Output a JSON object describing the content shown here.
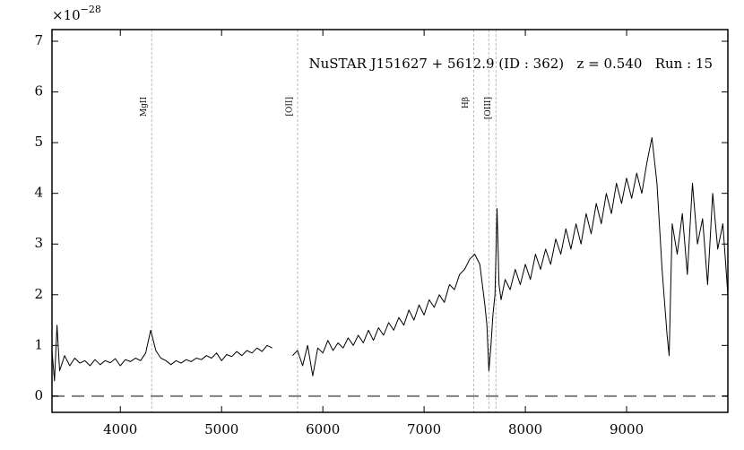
{
  "chart_data": {
    "type": "line",
    "title": "NuSTAR J151627 + 5612.9 (ID : 362)   z = 0.540   Run : 15",
    "offset_base": "×10",
    "offset_exponent": "−28",
    "x": [
      3325,
      3350,
      3375,
      3400,
      3450,
      3500,
      3550,
      3600,
      3650,
      3700,
      3750,
      3800,
      3850,
      3900,
      3950,
      4000,
      4050,
      4100,
      4150,
      4200,
      4250,
      4300,
      4325,
      4350,
      4400,
      4450,
      4500,
      4550,
      4600,
      4650,
      4700,
      4750,
      4800,
      4850,
      4900,
      4950,
      5000,
      5050,
      5100,
      5150,
      5200,
      5250,
      5300,
      5350,
      5400,
      5450,
      5500,
      5600,
      5700,
      5750,
      5800,
      5850,
      5900,
      5950,
      6000,
      6050,
      6100,
      6150,
      6200,
      6250,
      6300,
      6350,
      6400,
      6450,
      6500,
      6550,
      6600,
      6650,
      6700,
      6750,
      6800,
      6850,
      6900,
      6950,
      7000,
      7050,
      7100,
      7150,
      7200,
      7250,
      7300,
      7350,
      7400,
      7450,
      7500,
      7550,
      7600,
      7620,
      7640,
      7660,
      7680,
      7700,
      7720,
      7740,
      7760,
      7800,
      7850,
      7900,
      7950,
      8000,
      8050,
      8100,
      8150,
      8200,
      8250,
      8300,
      8350,
      8400,
      8450,
      8500,
      8550,
      8600,
      8650,
      8700,
      8750,
      8800,
      8850,
      8900,
      8950,
      9000,
      9050,
      9100,
      9150,
      9200,
      9250,
      9300,
      9350,
      9400,
      9420,
      9450,
      9500,
      9550,
      9600,
      9650,
      9700,
      9750,
      9800,
      9850,
      9900,
      9950,
      10000
    ],
    "series": [
      {
        "color": "#000000",
        "values": [
          0.9,
          0.3,
          1.4,
          0.5,
          0.8,
          0.6,
          0.75,
          0.65,
          0.7,
          0.6,
          0.72,
          0.62,
          0.7,
          0.66,
          0.74,
          0.6,
          0.72,
          0.68,
          0.75,
          0.7,
          0.85,
          1.3,
          1.1,
          0.9,
          0.75,
          0.7,
          0.62,
          0.7,
          0.65,
          0.72,
          0.68,
          0.75,
          0.72,
          0.8,
          0.75,
          0.85,
          0.7,
          0.82,
          0.78,
          0.88,
          0.8,
          0.9,
          0.85,
          0.95,
          0.88,
          1.0,
          0.95,
          null,
          0.8,
          0.9,
          0.6,
          1.0,
          0.4,
          0.95,
          0.85,
          1.1,
          0.9,
          1.05,
          0.95,
          1.15,
          1.0,
          1.2,
          1.05,
          1.3,
          1.1,
          1.35,
          1.2,
          1.45,
          1.3,
          1.55,
          1.4,
          1.7,
          1.5,
          1.8,
          1.6,
          1.9,
          1.75,
          2.0,
          1.85,
          2.2,
          2.1,
          2.4,
          2.5,
          2.7,
          2.8,
          2.6,
          1.8,
          1.4,
          0.5,
          1.0,
          1.6,
          2.0,
          3.7,
          2.2,
          1.9,
          2.3,
          2.1,
          2.5,
          2.2,
          2.6,
          2.3,
          2.8,
          2.5,
          2.9,
          2.6,
          3.1,
          2.8,
          3.3,
          2.9,
          3.4,
          3.0,
          3.6,
          3.2,
          3.8,
          3.4,
          4.0,
          3.6,
          4.2,
          3.8,
          4.3,
          3.9,
          4.4,
          4.0,
          4.6,
          5.1,
          4.2,
          2.5,
          1.2,
          0.8,
          3.4,
          2.8,
          3.6,
          2.4,
          4.2,
          3.0,
          3.5,
          2.2,
          4.0,
          2.9,
          3.4,
          2.0
        ]
      }
    ],
    "reference_line": {
      "value": 0,
      "color": "#808080"
    },
    "emission_lines": [
      {
        "x": 4310,
        "label": "MgII"
      },
      {
        "x": 5750,
        "label": "[OII]"
      },
      {
        "x": 7490,
        "label": "Hβ"
      },
      {
        "x": 7640,
        "label": null
      },
      {
        "x": 7710,
        "label": "[OIII]"
      }
    ],
    "xlim": [
      3325,
      10000
    ],
    "ylim": [
      -0.32,
      7.23
    ],
    "xticks": [
      4000,
      5000,
      6000,
      7000,
      8000,
      9000
    ],
    "yticks": [
      0,
      1,
      2,
      3,
      4,
      5,
      6,
      7
    ]
  }
}
